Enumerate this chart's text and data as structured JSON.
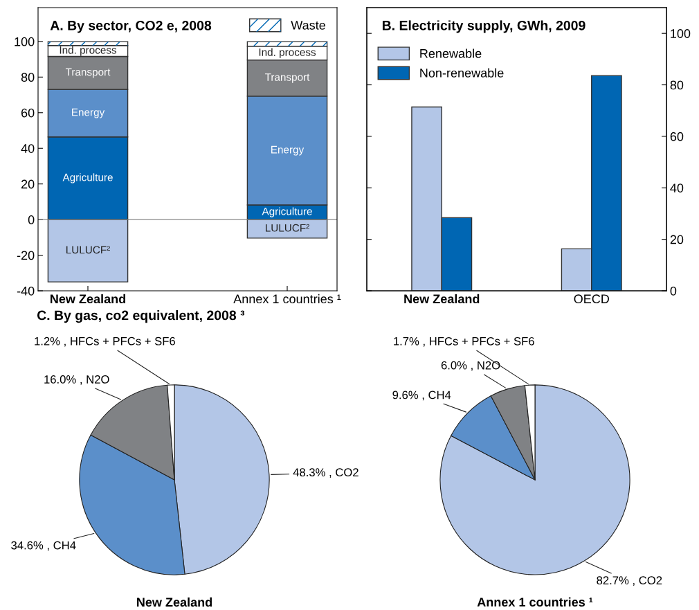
{
  "chart_data": [
    {
      "type": "bar",
      "title": "A. By sector, CO2 e, 2008",
      "categories": [
        "New Zealand",
        "Annex 1 countries ¹"
      ],
      "stacked": true,
      "legend": "top right",
      "ylim": [
        -40,
        119
      ],
      "yticks": [
        -40,
        -20,
        0,
        20,
        40,
        60,
        80,
        100
      ],
      "series": [
        {
          "name": "LULUCF²",
          "color": "#b3c6e7",
          "values": [
            -35,
            -10.4
          ]
        },
        {
          "name": "Agriculture",
          "color": "#0066b3",
          "values": [
            46.4,
            8.2
          ]
        },
        {
          "name": "Energy",
          "color": "#5b8fca",
          "values": [
            26.7,
            61.1
          ]
        },
        {
          "name": "Transport",
          "color": "#808285",
          "values": [
            18.5,
            20.3
          ]
        },
        {
          "name": "Ind. process",
          "color": "#ffffff",
          "values": [
            6.1,
            7.7
          ]
        },
        {
          "name": "Waste",
          "color": "#ffffff",
          "values": [
            2.2,
            2.6
          ]
        }
      ]
    },
    {
      "type": "bar",
      "title": "B. Electricity supply, GWh, 2009",
      "categories": [
        "New Zealand",
        "OECD"
      ],
      "legend": "top left",
      "y2lim": [
        0,
        110
      ],
      "y2ticks": [
        0,
        20,
        40,
        60,
        80,
        100
      ],
      "series": [
        {
          "name": "Renewable",
          "color": "#b3c6e7",
          "axis": "y2",
          "values": [
            71.4,
            16.3
          ]
        },
        {
          "name": "Non-renewable",
          "color": "#0066b3",
          "axis": "y2",
          "values": [
            28.4,
            83.6
          ]
        }
      ]
    },
    {
      "type": "pie",
      "title": "C. By gas, co2 equivalent, 2008 ³",
      "xlabel": "New Zealand",
      "categories": [
        "CO2",
        "CH4",
        "N2O",
        "HFCs + PFCs + SF6"
      ],
      "values": [
        48.3,
        34.6,
        16.0,
        1.2
      ],
      "colors": [
        "#b3c6e7",
        "#5b8fca",
        "#808285",
        "#ffffff"
      ],
      "value_labels": [
        "48.3%",
        "34.6%",
        "16.0%",
        "1.2%"
      ]
    },
    {
      "type": "pie",
      "xlabel": "Annex 1 countries ¹",
      "categories": [
        "CO2",
        "CH4",
        "N2O",
        "HFCs + PFCs + SF6"
      ],
      "values": [
        82.7,
        9.6,
        6.0,
        1.7
      ],
      "colors": [
        "#b3c6e7",
        "#5b8fca",
        "#808285",
        "#ffffff"
      ],
      "value_labels": [
        "82.7%",
        "9.6%",
        "6.0%",
        "1.7%"
      ]
    }
  ]
}
